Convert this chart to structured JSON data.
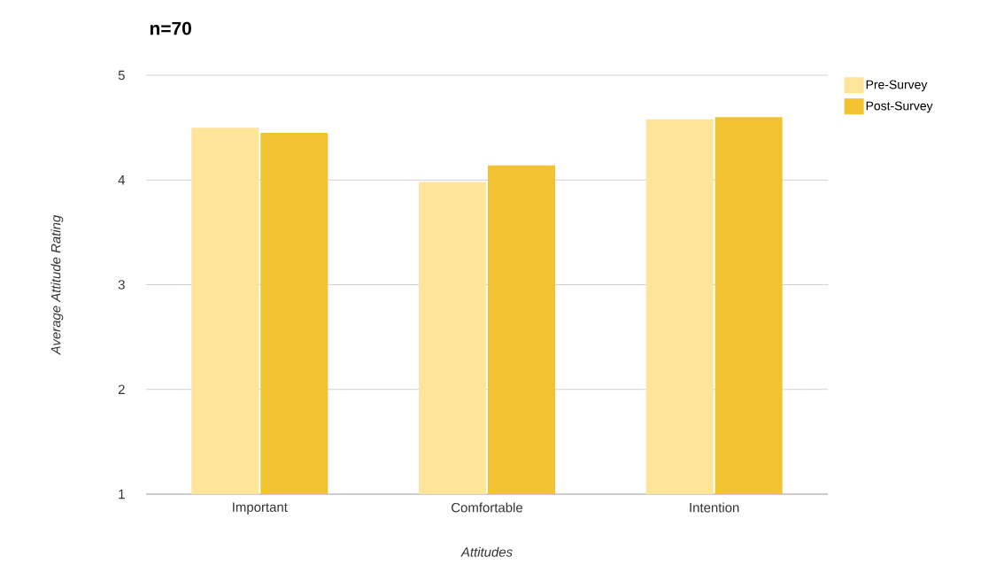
{
  "chart_data": {
    "type": "bar",
    "title": "n=70",
    "xlabel": "Attitudes",
    "ylabel": "Average Attitude Rating",
    "categories": [
      "Important",
      "Comfortable",
      "Intention"
    ],
    "series": [
      {
        "name": "Pre-Survey",
        "color": "#fee59a",
        "values": [
          4.5,
          3.98,
          4.58
        ]
      },
      {
        "name": "Post-Survey",
        "color": "#f1c232",
        "values": [
          4.45,
          4.14,
          4.6
        ]
      }
    ],
    "ylim": [
      1,
      5
    ],
    "yticks": [
      1,
      2,
      3,
      4,
      5
    ],
    "grid": "y",
    "legend": "top right"
  }
}
